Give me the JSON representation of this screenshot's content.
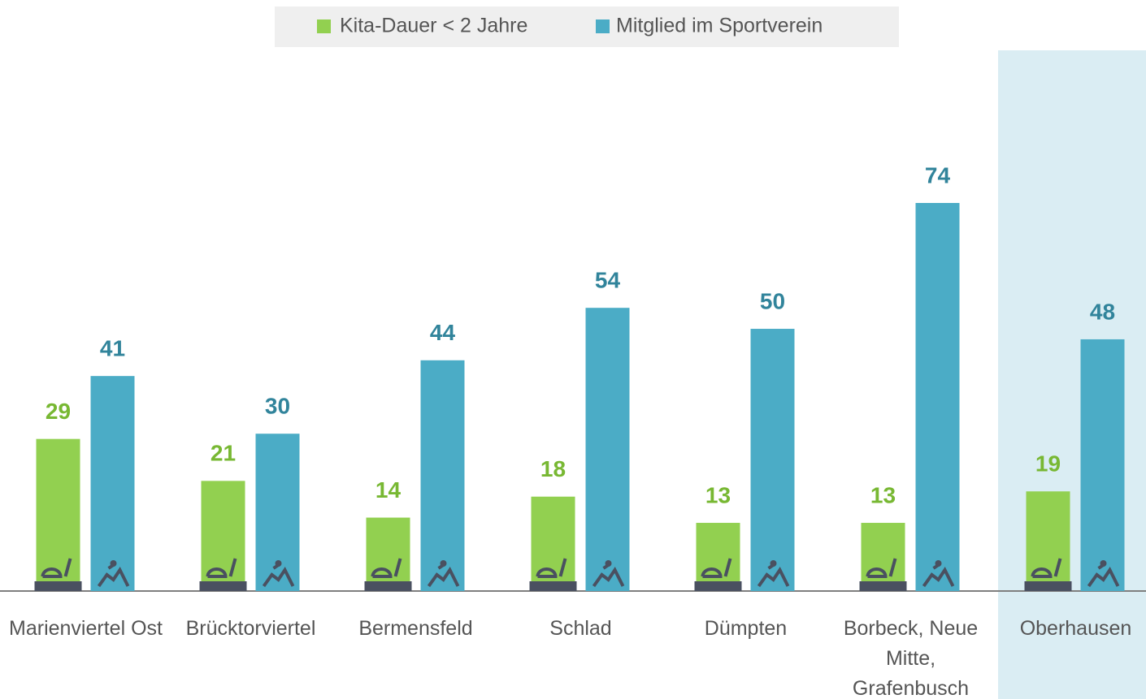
{
  "chart_data": {
    "type": "bar",
    "categories": [
      "Marienviertel Ost",
      "Brücktorviertel",
      "Bermensfeld",
      "Schlad",
      "Dümpten",
      "Borbeck, Neue Mitte, Grafenbusch",
      "Oberhausen"
    ],
    "series": [
      {
        "name": "Kita-Dauer < 2 Jahre",
        "color": "#92d050",
        "label_color": "#78b833",
        "values": [
          29,
          21,
          14,
          18,
          13,
          13,
          19
        ]
      },
      {
        "name": "Mitglied im Sportverein",
        "color": "#4bacc6",
        "label_color": "#31849b",
        "values": [
          41,
          30,
          44,
          54,
          50,
          74,
          48
        ]
      }
    ]
  }
}
